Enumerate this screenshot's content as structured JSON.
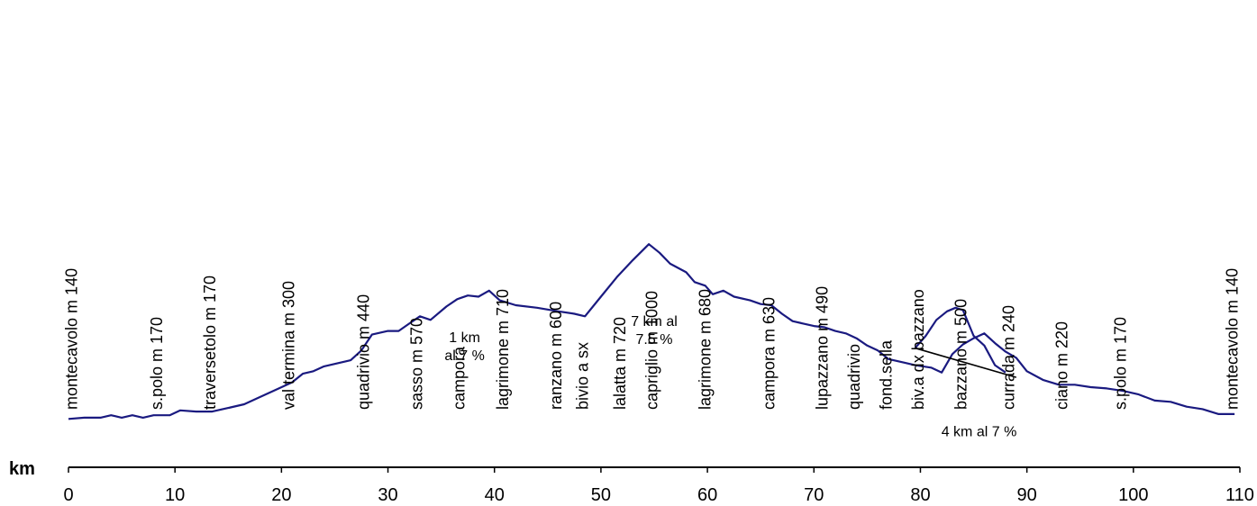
{
  "chart_data": {
    "type": "line",
    "title": "",
    "xlabel": "km",
    "ylabel": "",
    "xlim": [
      0,
      110
    ],
    "x_ticks": [
      "0",
      "10",
      "20",
      "30",
      "40",
      "50",
      "60",
      "70",
      "80",
      "90",
      "100",
      "110"
    ],
    "line_color": "#1a1a80",
    "series": [
      {
        "x": [
          0,
          1.5,
          3,
          4,
          5,
          6,
          7,
          8,
          9.5,
          10.5,
          12,
          13.5,
          15,
          16.5,
          18,
          19.5,
          21,
          22,
          23,
          24,
          25,
          26.5,
          27.5,
          28.5,
          30,
          31,
          32,
          33,
          34,
          35.5,
          36.5,
          37.5,
          38.5,
          39.5,
          40.5,
          42,
          44,
          46,
          47.5,
          48.5,
          50,
          51.5,
          53,
          54.5,
          55.5,
          56.5,
          58,
          58.8,
          59.8,
          60.5,
          61.5,
          62.5,
          64,
          65,
          66,
          67,
          68,
          69,
          70,
          71,
          72,
          73,
          74,
          75,
          76,
          77,
          78.5,
          79.5,
          81,
          82,
          83,
          84,
          85,
          86,
          87,
          88,
          89,
          90,
          91.5,
          93,
          94.5,
          96,
          97.5,
          99,
          100.5,
          102,
          103.5,
          105,
          106.5,
          108,
          109.5
        ],
        "y": [
          140,
          145,
          145,
          155,
          145,
          155,
          145,
          155,
          155,
          175,
          170,
          170,
          185,
          200,
          230,
          260,
          290,
          325,
          335,
          355,
          365,
          380,
          420,
          485,
          500,
          500,
          530,
          560,
          545,
          600,
          630,
          645,
          640,
          665,
          625,
          605,
          595,
          580,
          570,
          560,
          640,
          720,
          790,
          855,
          820,
          775,
          740,
          700,
          685,
          650,
          665,
          640,
          625,
          610,
          605,
          570,
          540,
          530,
          520,
          515,
          500,
          490,
          470,
          440,
          420,
          385,
          370,
          360,
          350,
          330,
          405,
          445,
          470,
          490,
          450,
          415,
          390,
          335,
          300,
          280,
          280,
          270,
          265,
          255,
          240,
          215,
          210,
          190,
          180,
          160,
          160
        ]
      }
    ],
    "side_trip": {
      "x": [
        79.5,
        80.5,
        81.5,
        82.5,
        83.3,
        84,
        85,
        86,
        87,
        88
      ],
      "y": [
        430,
        480,
        545,
        580,
        595,
        585,
        480,
        440,
        360,
        330
      ]
    },
    "gradient_line": {
      "x": [
        79.5,
        89
      ],
      "y": [
        430,
        310
      ]
    },
    "places": [
      {
        "label": "montecavolo m 140",
        "x": 0.8
      },
      {
        "label": "s.polo m 170",
        "x": 8.8
      },
      {
        "label": "traversetolo m 170",
        "x": 13.8
      },
      {
        "label": "val termina m 300",
        "x": 21.2
      },
      {
        "label": "quadrivio m 440",
        "x": 28.2
      },
      {
        "label": "sasso m 570",
        "x": 33.2
      },
      {
        "label": "campora",
        "x": 37.2
      },
      {
        "label": "lagrimone m 710",
        "x": 41.3
      },
      {
        "label": "ranzano m 600",
        "x": 46.3
      },
      {
        "label": "bivio a sx",
        "x": 48.8
      },
      {
        "label": "lalatta m 720",
        "x": 52.3
      },
      {
        "label": "capriglio m 1000",
        "x": 55.3
      },
      {
        "label": "lagrimone m 680",
        "x": 60.3
      },
      {
        "label": "campora m 630",
        "x": 66.3
      },
      {
        "label": "lupazzano m 490",
        "x": 71.3
      },
      {
        "label": "quadrivio",
        "x": 74.3
      },
      {
        "label": "fond.sella",
        "x": 77.3
      },
      {
        "label": "biv.a dx bazzano",
        "x": 80.3
      },
      {
        "label": "bazzano m 500",
        "x": 84.3
      },
      {
        "label": "currada m 240",
        "x": 88.8
      },
      {
        "label": "ciano m 220",
        "x": 93.8
      },
      {
        "label": "s.polo m 170",
        "x": 99.3
      },
      {
        "label": "montecavolo m 140",
        "x": 109.8
      }
    ],
    "annotations": [
      {
        "lines": [
          "1 km",
          "al 7 %"
        ],
        "x": 37.2,
        "y": 455
      },
      {
        "lines": [
          "7 km al",
          "7.5 %"
        ],
        "x": 55,
        "y": 520
      },
      {
        "lines": [
          "4 km al 7 %"
        ],
        "x": 85.5,
        "y": 70
      }
    ]
  }
}
